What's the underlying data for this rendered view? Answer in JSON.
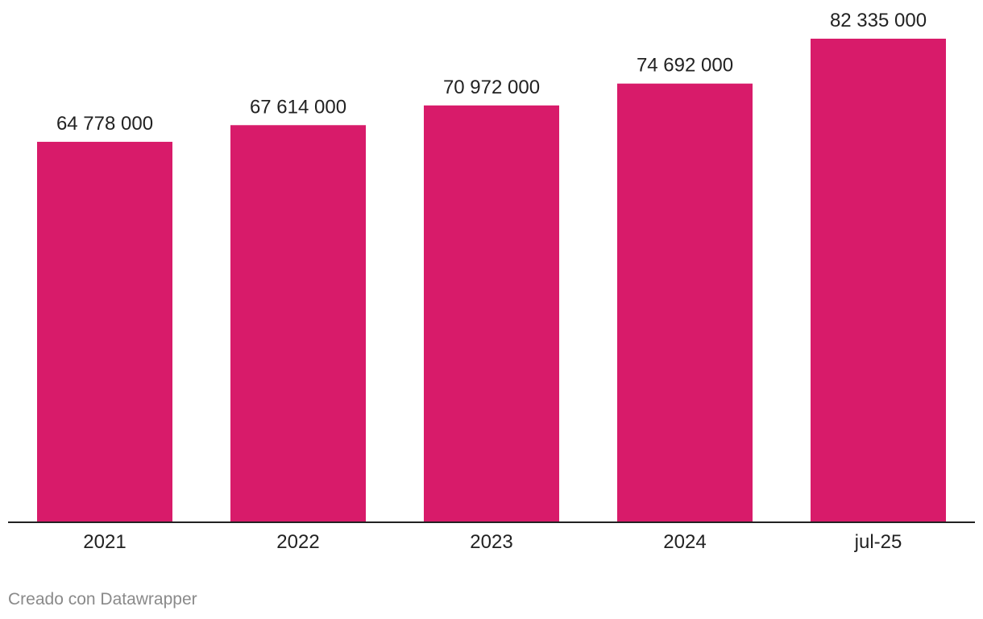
{
  "chart_data": {
    "type": "bar",
    "categories": [
      "2021",
      "2022",
      "2023",
      "2024",
      "jul-25"
    ],
    "values": [
      64778000,
      67614000,
      70972000,
      74692000,
      82335000
    ],
    "value_labels": [
      "64 778 000",
      "67 614 000",
      "70 972 000",
      "74 692 000",
      "82 335 000"
    ],
    "title": "",
    "xlabel": "",
    "ylabel": "",
    "ylim": [
      0,
      82335000
    ],
    "grid": false,
    "legend": "none",
    "bar_color": "#d81b6a",
    "baseline_color": "#222222"
  },
  "footer": {
    "credit": "Creado con Datawrapper"
  }
}
